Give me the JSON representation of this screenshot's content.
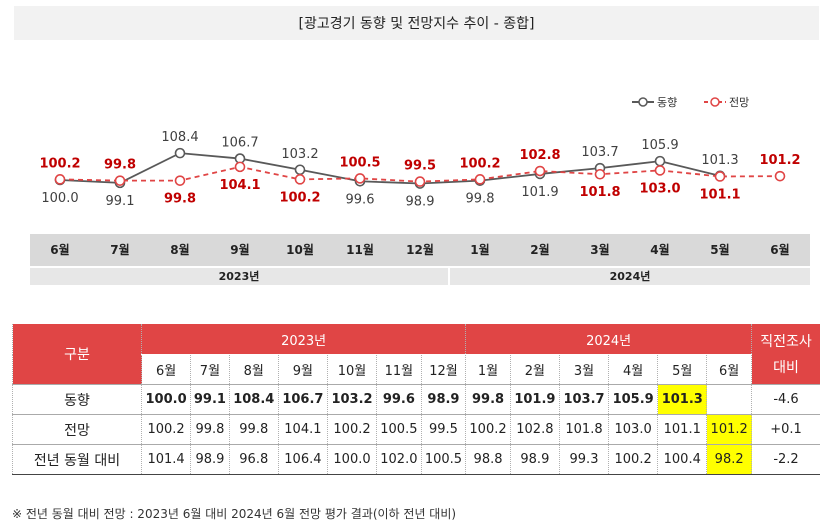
{
  "title": "[광고경기 동향 및 전망지수 추이 - 종합]",
  "chart_data": {
    "type": "line",
    "categories": [
      "6월",
      "7월",
      "8월",
      "9월",
      "10월",
      "11월",
      "12월",
      "1월",
      "2월",
      "3월",
      "4월",
      "5월",
      "6월"
    ],
    "year_groups": [
      {
        "label": "2023년",
        "span": 7
      },
      {
        "label": "2024년",
        "span": 6
      }
    ],
    "series": [
      {
        "name": "동향",
        "style": "solid",
        "color": "#595959",
        "values": [
          100.0,
          99.1,
          108.4,
          106.7,
          103.2,
          99.6,
          98.9,
          99.8,
          101.9,
          103.7,
          105.9,
          101.3,
          null
        ],
        "label_pos": [
          "below",
          "below",
          "above",
          "above",
          "above",
          "below",
          "below",
          "below",
          "below",
          "above",
          "above",
          "above",
          null
        ]
      },
      {
        "name": "전망",
        "style": "dashed",
        "color": "#e04545",
        "values": [
          100.2,
          99.8,
          99.8,
          104.1,
          100.2,
          100.5,
          99.5,
          100.2,
          102.8,
          101.8,
          103.0,
          101.1,
          101.2
        ],
        "label_pos": [
          "above",
          "above",
          "below",
          "below",
          "below",
          "above",
          "above",
          "above",
          "above",
          "below",
          "below",
          "below",
          "above"
        ]
      }
    ],
    "legend": [
      "동향",
      "전망"
    ],
    "legend_position": "top-right"
  },
  "table": {
    "header_label": "구분",
    "year_2023": "2023년",
    "year_2024": "2024년",
    "side_header_top": "직전조사",
    "side_header_bottom": "대비",
    "months": [
      "6월",
      "7월",
      "8월",
      "9월",
      "10월",
      "11월",
      "12월",
      "1월",
      "2월",
      "3월",
      "4월",
      "5월",
      "6월"
    ],
    "rows": [
      {
        "label": "동향",
        "values": [
          "100.0",
          "99.1",
          "108.4",
          "106.7",
          "103.2",
          "99.6",
          "98.9",
          "99.8",
          "101.9",
          "103.7",
          "105.9",
          "101.3",
          ""
        ],
        "diff": "-4.6",
        "bold": true,
        "highlight_index": 11
      },
      {
        "label": "전망",
        "values": [
          "100.2",
          "99.8",
          "99.8",
          "104.1",
          "100.2",
          "100.5",
          "99.5",
          "100.2",
          "102.8",
          "101.8",
          "103.0",
          "101.1",
          "101.2"
        ],
        "diff": "+0.1",
        "bold": false,
        "highlight_index": 12
      },
      {
        "label": "전년 동월 대비",
        "values": [
          "101.4",
          "98.9",
          "96.8",
          "106.4",
          "100.0",
          "102.0",
          "100.5",
          "98.8",
          "98.9",
          "99.3",
          "100.2",
          "100.4",
          "98.2"
        ],
        "diff": "-2.2",
        "bold": false,
        "highlight_index": 12
      }
    ]
  },
  "footnote": "※ 전년 동월 대비 전망 : 2023년 6월 대비 2024년 6월 전망 평가 결과(이하 전년 대비)"
}
